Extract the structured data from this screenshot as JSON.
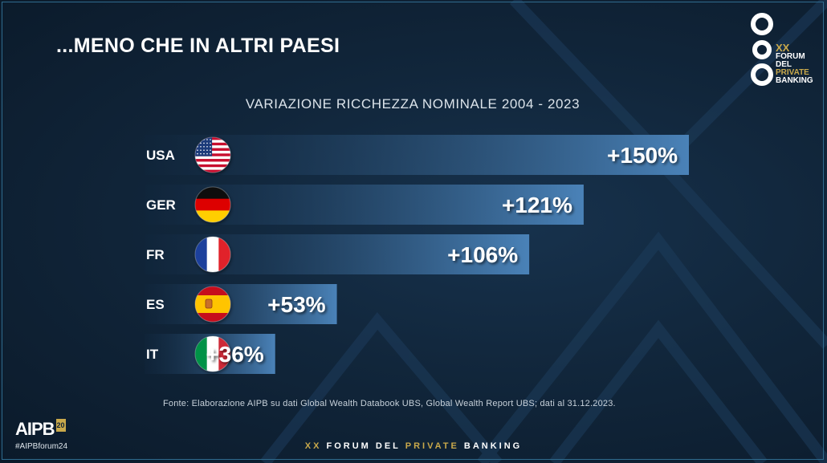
{
  "slide": {
    "title": "...MENO CHE IN ALTRI PAESI",
    "source": "Fonte: Elaborazione AIPB su dati Global Wealth Databook UBS, Global Wealth Report UBS; dati al 31.12.2023.",
    "hashtag": "#AIPBforum24",
    "aipb_logo": "AIPB",
    "aipb_badge": "20",
    "footer": {
      "part1": "XX",
      "part2": "FORUM DEL",
      "part3": "PRIVATE",
      "part4": "BANKING"
    },
    "forum_logo": {
      "line1": "XX",
      "line2": "FORUM",
      "line3": "DEL",
      "line4": "PRIVATE",
      "line5": "BANKING"
    }
  },
  "colors": {
    "background": "#0f2236",
    "bar_start": "#4a82b8",
    "bar_end": "#10263d",
    "gold": "#c9a94b"
  },
  "chart_data": {
    "type": "bar",
    "orientation": "horizontal",
    "title": "VARIAZIONE RICCHEZZA NOMINALE 2004 - 2023",
    "categories": [
      "USA",
      "GER",
      "FR",
      "ES",
      "IT"
    ],
    "flags": [
      "us-flag-icon",
      "germany-flag-icon",
      "france-flag-icon",
      "spain-flag-icon",
      "italy-flag-icon"
    ],
    "values": [
      150,
      121,
      106,
      53,
      36
    ],
    "labels": [
      "+150%",
      "+121%",
      "+106%",
      "+53%",
      "+36%"
    ],
    "unit": "%",
    "xlim": [
      0,
      150
    ],
    "grid": false,
    "legend": "none"
  }
}
